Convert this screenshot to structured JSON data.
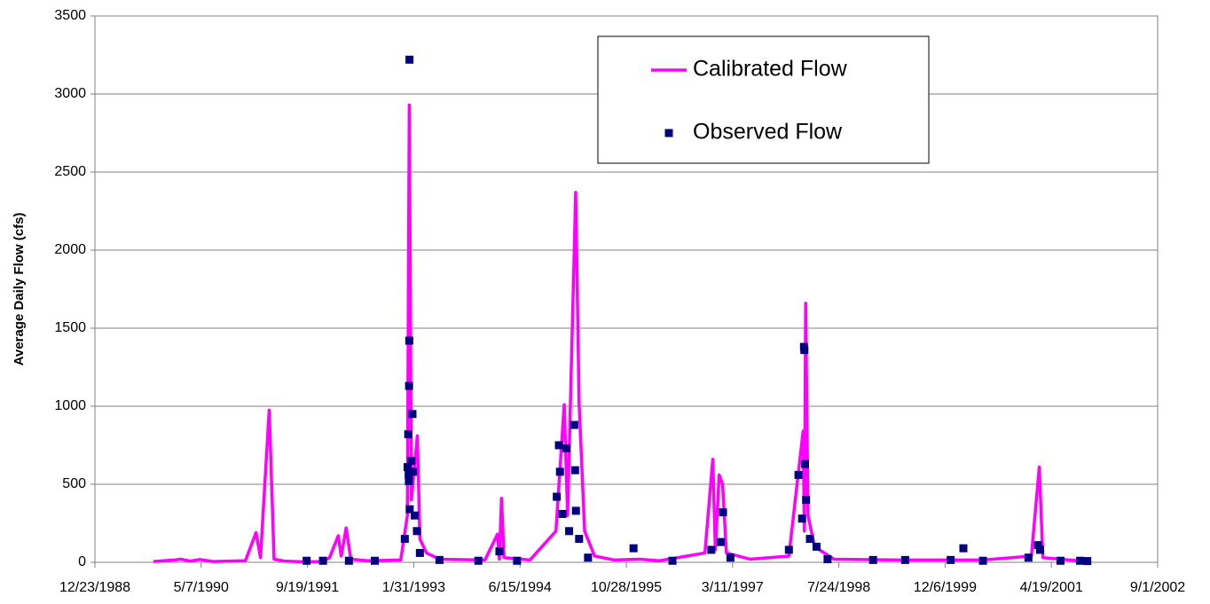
{
  "chart_data": {
    "type": "line",
    "y_label": "Average Daily Flow (cfs)",
    "xlim": [
      "1988-12-23",
      "2002-09-01"
    ],
    "xticks": [
      {
        "value": "1988-12-23",
        "label": "12/23/1988"
      },
      {
        "value": "1990-05-07",
        "label": "5/7/1990"
      },
      {
        "value": "1991-09-19",
        "label": "9/19/1991"
      },
      {
        "value": "1993-01-31",
        "label": "1/31/1993"
      },
      {
        "value": "1994-06-15",
        "label": "6/15/1994"
      },
      {
        "value": "1995-10-28",
        "label": "10/28/1995"
      },
      {
        "value": "1997-03-11",
        "label": "3/11/1997"
      },
      {
        "value": "1998-07-24",
        "label": "7/24/1998"
      },
      {
        "value": "1999-12-06",
        "label": "12/6/1999"
      },
      {
        "value": "2001-04-19",
        "label": "4/19/2001"
      },
      {
        "value": "2002-09-01",
        "label": "9/1/2002"
      }
    ],
    "ylim": [
      0,
      3500
    ],
    "yticks": [
      0,
      500,
      1000,
      1500,
      2000,
      2500,
      3000,
      3500
    ],
    "grid": true,
    "legend": "top-right",
    "series": [
      {
        "name": "Calibrated Flow",
        "type": "line",
        "color": "#ff00ff",
        "x": [
          "1989-09-24",
          "1990-01-01",
          "1990-02-01",
          "1990-03-15",
          "1990-05-01",
          "1990-07-01",
          "1990-12-01",
          "1991-01-20",
          "1991-02-10",
          "1991-03-23",
          "1991-04-15",
          "1991-06-01",
          "1991-09-01",
          "1991-12-01",
          "1992-01-01",
          "1992-02-11",
          "1992-02-25",
          "1992-03-19",
          "1992-04-10",
          "1992-07-01",
          "1992-12-01",
          "1993-01-01",
          "1993-01-10",
          "1993-01-20",
          "1993-02-17",
          "1993-03-01",
          "1993-04-01",
          "1993-06-01",
          "1994-01-01",
          "1994-03-01",
          "1994-03-10",
          "1994-03-20",
          "1994-04-01",
          "1994-08-01",
          "1994-12-01",
          "1995-01-09",
          "1995-01-25",
          "1995-03-04",
          "1995-03-20",
          "1995-04-15",
          "1995-06-01",
          "1995-09-01",
          "1996-01-01",
          "1996-04-01",
          "1996-11-01",
          "1996-12-08",
          "1996-12-20",
          "1997-01-07",
          "1997-01-23",
          "1997-02-10",
          "1997-06-01",
          "1997-12-01",
          "1998-02-06",
          "1998-02-12",
          "1998-02-18",
          "1998-03-01",
          "1998-04-01",
          "1998-07-01",
          "1999-06-01",
          "2000-06-01",
          "2001-01-15",
          "2001-02-21",
          "2001-03-10",
          "2001-10-05"
        ],
        "values": [
          5,
          15,
          20,
          8,
          18,
          5,
          10,
          190,
          30,
          975,
          20,
          8,
          3,
          5,
          30,
          170,
          40,
          220,
          20,
          10,
          15,
          300,
          2930,
          400,
          810,
          150,
          60,
          20,
          15,
          180,
          20,
          410,
          30,
          15,
          200,
          1010,
          300,
          2370,
          1020,
          200,
          40,
          15,
          20,
          10,
          60,
          660,
          80,
          560,
          500,
          60,
          20,
          40,
          840,
          200,
          1660,
          300,
          100,
          20,
          15,
          15,
          40,
          610,
          30,
          5
        ]
      },
      {
        "name": "Observed Flow",
        "type": "scatter",
        "color": "#000080",
        "x": [
          "1991-09-15",
          "1991-12-01",
          "1992-04-01",
          "1992-08-01",
          "1992-12-20",
          "1993-01-02",
          "1993-01-05",
          "1993-01-07",
          "1993-01-08",
          "1993-01-09",
          "1993-01-10",
          "1993-01-11",
          "1993-01-12",
          "1993-01-20",
          "1993-01-25",
          "1993-01-28",
          "1993-02-05",
          "1993-02-15",
          "1993-03-01",
          "1993-06-01",
          "1993-12-01",
          "1994-03-10",
          "1994-06-01",
          "1994-12-05",
          "1994-12-15",
          "1994-12-20",
          "1995-01-01",
          "1995-01-20",
          "1995-02-01",
          "1995-02-25",
          "1995-03-01",
          "1995-03-05",
          "1995-03-20",
          "1995-05-01",
          "1995-12-01",
          "1996-06-01",
          "1996-12-01",
          "1997-01-15",
          "1997-01-25",
          "1997-03-01",
          "1997-12-01",
          "1998-01-15",
          "1998-02-01",
          "1998-02-10",
          "1998-02-12",
          "1998-02-15",
          "1998-02-20",
          "1998-03-10",
          "1998-04-10",
          "1998-06-01",
          "1999-01-01",
          "1999-06-01",
          "2000-01-01",
          "2000-03-01",
          "2000-06-01",
          "2001-01-01",
          "2001-02-15",
          "2001-02-25",
          "2001-06-01",
          "2001-09-01",
          "2001-10-05"
        ],
        "values": [
          10,
          10,
          10,
          10,
          150,
          610,
          820,
          560,
          520,
          1130,
          1420,
          3220,
          340,
          650,
          950,
          580,
          300,
          200,
          60,
          15,
          10,
          70,
          10,
          420,
          750,
          580,
          310,
          730,
          200,
          880,
          590,
          330,
          150,
          30,
          90,
          10,
          80,
          130,
          320,
          30,
          80,
          560,
          280,
          1380,
          1360,
          630,
          400,
          150,
          100,
          20,
          15,
          15,
          15,
          90,
          10,
          30,
          110,
          80,
          10,
          10,
          8
        ]
      }
    ]
  }
}
